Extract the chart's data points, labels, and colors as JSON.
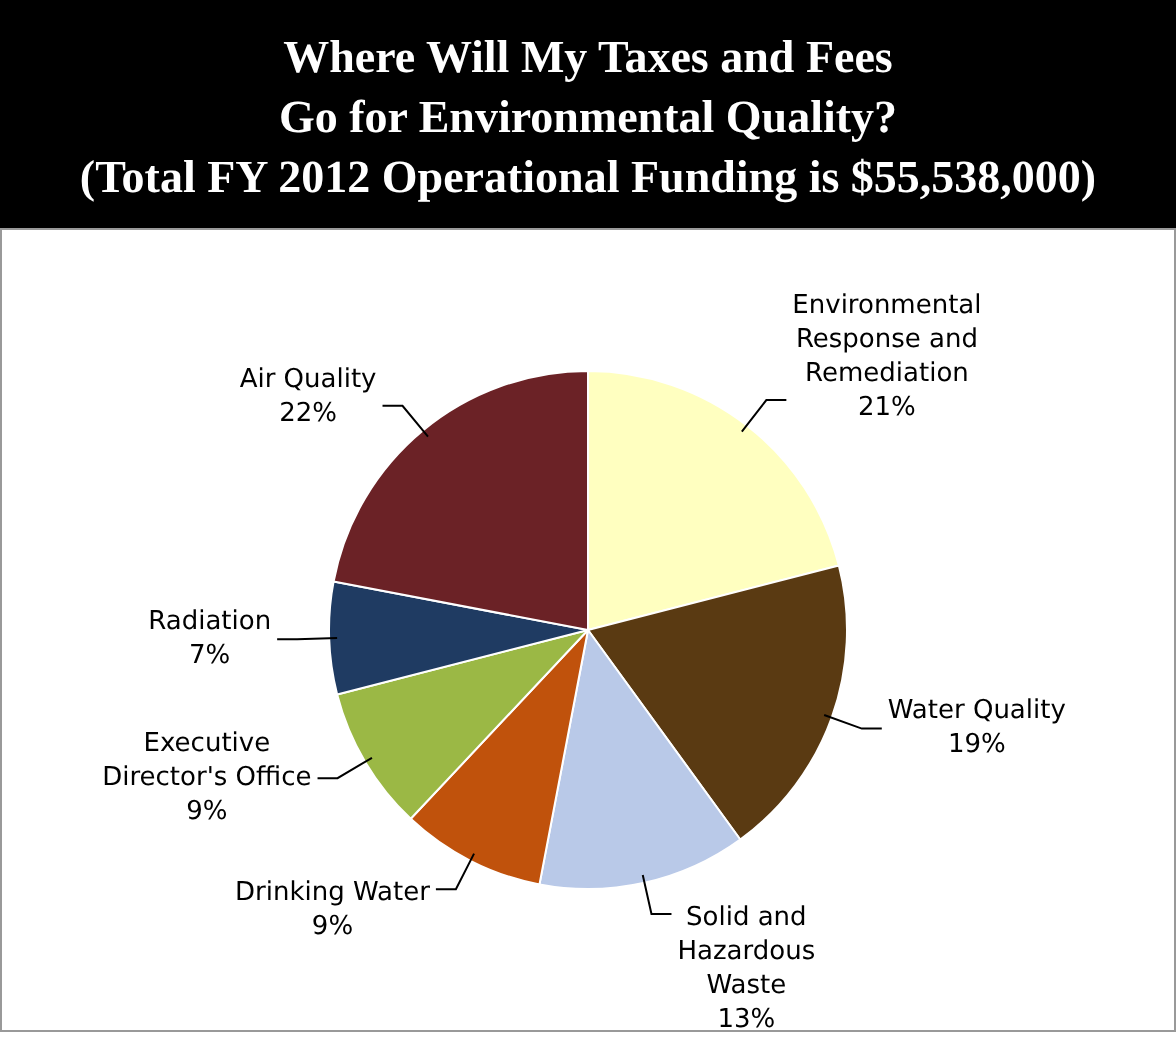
{
  "chart_data": {
    "type": "pie",
    "title": "Where Will My Taxes and Fees\nGo for Environmental Quality?\n(Total FY 2012 Operational Funding is $55,538,000)",
    "categories": [
      "Environmental Response and Remediation",
      "Water Quality",
      "Solid and Hazardous Waste",
      "Drinking Water",
      "Executive Director's Office",
      "Radiation",
      "Air Quality"
    ],
    "values": [
      21,
      19,
      13,
      9,
      9,
      7,
      22
    ],
    "value_labels": [
      "21%",
      "19%",
      "13%",
      "9%",
      "9%",
      "7%",
      "22%"
    ],
    "colors": [
      "#ffffc0",
      "#5a3a12",
      "#b9c9e8",
      "#c0520c",
      "#9bb845",
      "#1f3b62",
      "#6b2226"
    ],
    "legend": false
  }
}
